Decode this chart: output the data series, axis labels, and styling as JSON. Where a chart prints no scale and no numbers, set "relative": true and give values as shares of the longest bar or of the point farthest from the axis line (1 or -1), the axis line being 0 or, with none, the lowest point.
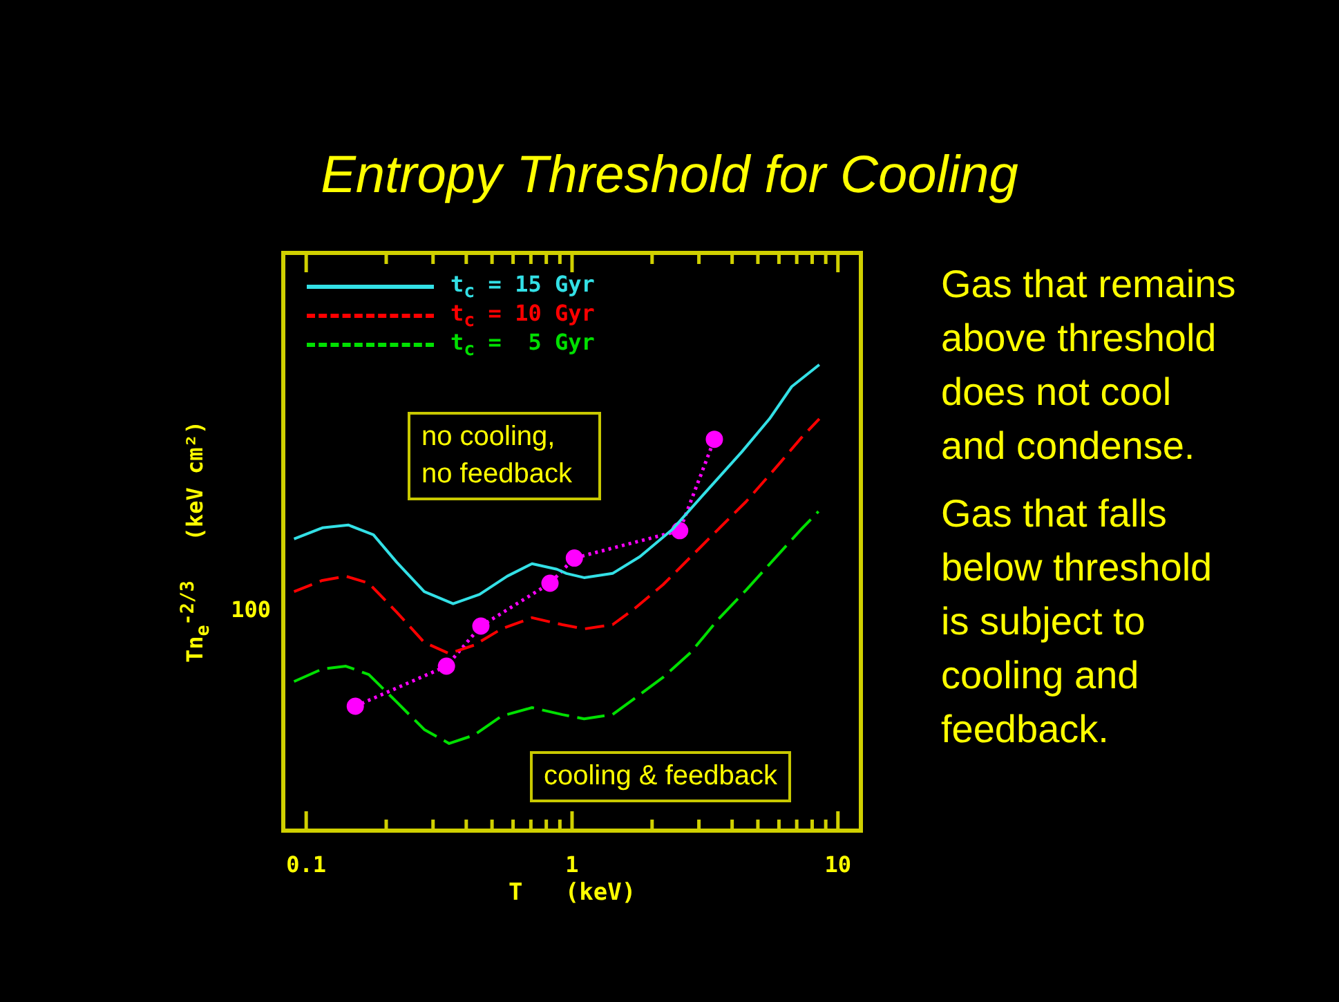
{
  "chart_data": {
    "type": "line",
    "title": "Entropy Threshold for Cooling",
    "xlabel": "T   (keV)",
    "ylabel": "Tn$_{e}$$^{-2/3}$   (keV cm²)",
    "log": "x",
    "relative": true,
    "legend": "top left",
    "xlim": [
      0.082,
      12.2
    ],
    "xticks": [
      {
        "value": 0.1,
        "label": "0.1"
      },
      {
        "value": 0.2,
        "label": null
      },
      {
        "value": 0.3,
        "label": null
      },
      {
        "value": 0.4,
        "label": null
      },
      {
        "value": 0.5,
        "label": null
      },
      {
        "value": 0.6,
        "label": null
      },
      {
        "value": 0.7,
        "label": null
      },
      {
        "value": 0.8,
        "label": null
      },
      {
        "value": 0.9,
        "label": null
      },
      {
        "value": 1,
        "label": "1"
      },
      {
        "value": 2,
        "label": null
      },
      {
        "value": 3,
        "label": null
      },
      {
        "value": 4,
        "label": null
      },
      {
        "value": 5,
        "label": null
      },
      {
        "value": 6,
        "label": null
      },
      {
        "value": 7,
        "label": null
      },
      {
        "value": 8,
        "label": null
      },
      {
        "value": 9,
        "label": null
      },
      {
        "value": 10,
        "label": "10"
      }
    ],
    "series": [
      {
        "name": "t$_{c}$ = 15 Gyr",
        "color": "#33e0e6",
        "line_style": "solid",
        "x": [
          0.09,
          0.115,
          0.144,
          0.179,
          0.219,
          0.278,
          0.357,
          0.449,
          0.57,
          0.707,
          0.877,
          0.953,
          1.11,
          1.42,
          1.8,
          2.39,
          3.15,
          4.35,
          5.53,
          6.7,
          8.51
        ],
        "values": [
          0.626,
          0.65,
          0.656,
          0.635,
          0.576,
          0.513,
          0.487,
          0.507,
          0.546,
          0.573,
          0.561,
          0.552,
          0.543,
          0.552,
          0.588,
          0.647,
          0.724,
          0.813,
          0.884,
          0.953,
          1.0
        ]
      },
      {
        "name": "t$_{c}$ = 10 Gyr",
        "color": "#ff0000",
        "line_style": "dashed",
        "x": [
          0.09,
          0.115,
          0.141,
          0.172,
          0.219,
          0.278,
          0.345,
          0.428,
          0.543,
          0.707,
          0.92,
          1.11,
          1.42,
          1.73,
          2.2,
          2.8,
          3.55,
          4.51,
          5.74,
          7.28,
          8.51
        ],
        "values": [
          0.513,
          0.537,
          0.546,
          0.531,
          0.469,
          0.404,
          0.38,
          0.398,
          0.433,
          0.457,
          0.442,
          0.433,
          0.442,
          0.478,
          0.528,
          0.588,
          0.647,
          0.706,
          0.774,
          0.843,
          0.884
        ]
      },
      {
        "name": "t$_{c}$ =  5 Gyr",
        "color": "#00e000",
        "line_style": "dashed",
        "x": [
          0.09,
          0.115,
          0.141,
          0.172,
          0.219,
          0.278,
          0.345,
          0.428,
          0.543,
          0.707,
          0.92,
          1.11,
          1.42,
          1.73,
          2.2,
          2.8,
          3.55,
          4.51,
          5.74,
          7.28,
          8.45
        ],
        "values": [
          0.32,
          0.347,
          0.353,
          0.335,
          0.276,
          0.217,
          0.187,
          0.205,
          0.246,
          0.264,
          0.249,
          0.24,
          0.249,
          0.285,
          0.329,
          0.383,
          0.454,
          0.516,
          0.582,
          0.647,
          0.685
        ]
      },
      {
        "color": "#ff00ff",
        "line_style": "dotted",
        "marker": "circle",
        "x": [
          0.153,
          0.337,
          0.454,
          0.826,
          1.02,
          2.54,
          3.43
        ],
        "values": [
          0.267,
          0.353,
          0.439,
          0.531,
          0.585,
          0.644,
          0.84
        ]
      }
    ],
    "annotations": [
      "no cooling, no feedback",
      "cooling & feedback",
      "100",
      "Gas that remains above threshold does not cool and condense.",
      "Gas that falls below threshold is subject to cooling and feedback."
    ]
  }
}
